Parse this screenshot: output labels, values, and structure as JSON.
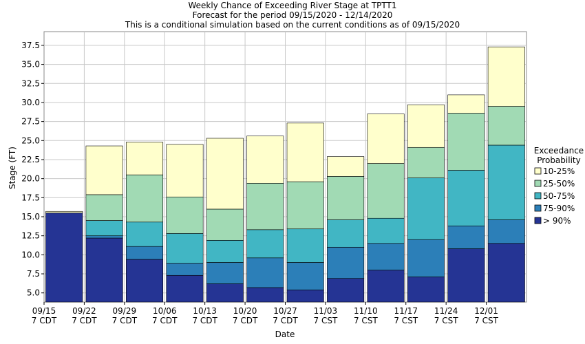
{
  "chart_data": {
    "type": "bar",
    "stacked": true,
    "title": "Weekly Chance of Exceeding River Stage at TPTT1",
    "subtitle": "Forecast for the period 09/15/2020 - 12/14/2020",
    "subtitle2": "This is a conditional simulation based on the current conditions as of 09/15/2020",
    "xlabel": "Date",
    "ylabel": "Stage (FT)",
    "ylim": [
      3.8,
      39.3
    ],
    "yticks": [
      5.0,
      7.5,
      10.0,
      12.5,
      15.0,
      17.5,
      20.0,
      22.5,
      25.0,
      27.5,
      30.0,
      32.5,
      35.0,
      37.5
    ],
    "ytick_labels": [
      "5.0",
      "7.5",
      "10.0",
      "12.5",
      "15.0",
      "17.5",
      "20.0",
      "22.5",
      "25.0",
      "27.5",
      "30.0",
      "32.5",
      "35.0",
      "37.5"
    ],
    "xtick_labels": [
      {
        "date": "09/15",
        "tz": "7 CDT"
      },
      {
        "date": "09/22",
        "tz": "7 CDT"
      },
      {
        "date": "09/29",
        "tz": "7 CDT"
      },
      {
        "date": "10/06",
        "tz": "7 CDT"
      },
      {
        "date": "10/13",
        "tz": "7 CDT"
      },
      {
        "date": "10/20",
        "tz": "7 CDT"
      },
      {
        "date": "10/27",
        "tz": "7 CDT"
      },
      {
        "date": "11/03",
        "tz": "7 CST"
      },
      {
        "date": "11/10",
        "tz": "7 CST"
      },
      {
        "date": "11/17",
        "tz": "7 CST"
      },
      {
        "date": "11/24",
        "tz": "7 CST"
      },
      {
        "date": "12/01",
        "tz": "7 CST"
      }
    ],
    "legend": {
      "title_line1": "Exceedance",
      "title_line2": "Probability",
      "placement": "right",
      "entries": [
        {
          "label": "10-25%",
          "color": "#ffffcc"
        },
        {
          "label": "25-50%",
          "color": "#a1dab4"
        },
        {
          "label": "50-75%",
          "color": "#41b6c4"
        },
        {
          "label": "75-90%",
          "color": "#2c7fb8"
        },
        {
          "label": "> 90%",
          "color": "#253494"
        }
      ]
    },
    "grid": true,
    "bars": [
      {
        "levels": [
          15.5,
          15.5,
          15.5,
          15.5,
          15.7
        ]
      },
      {
        "levels": [
          12.2,
          12.5,
          14.5,
          17.9,
          24.3
        ]
      },
      {
        "levels": [
          9.4,
          11.1,
          14.3,
          20.5,
          24.8
        ]
      },
      {
        "levels": [
          7.3,
          8.9,
          12.8,
          17.6,
          24.5
        ]
      },
      {
        "levels": [
          6.2,
          9.0,
          11.9,
          16.0,
          25.3
        ]
      },
      {
        "levels": [
          5.7,
          9.6,
          13.3,
          19.4,
          25.6
        ]
      },
      {
        "levels": [
          5.4,
          9.0,
          13.4,
          19.6,
          27.3
        ]
      },
      {
        "levels": [
          6.9,
          11.0,
          14.6,
          20.3,
          22.9
        ]
      },
      {
        "levels": [
          8.0,
          11.5,
          14.8,
          22.0,
          28.5
        ]
      },
      {
        "levels": [
          7.1,
          12.0,
          20.1,
          24.1,
          29.7
        ]
      },
      {
        "levels": [
          10.8,
          13.8,
          21.1,
          28.6,
          31.0
        ]
      },
      {
        "levels": [
          11.5,
          14.6,
          24.4,
          29.5,
          37.3
        ]
      }
    ]
  }
}
